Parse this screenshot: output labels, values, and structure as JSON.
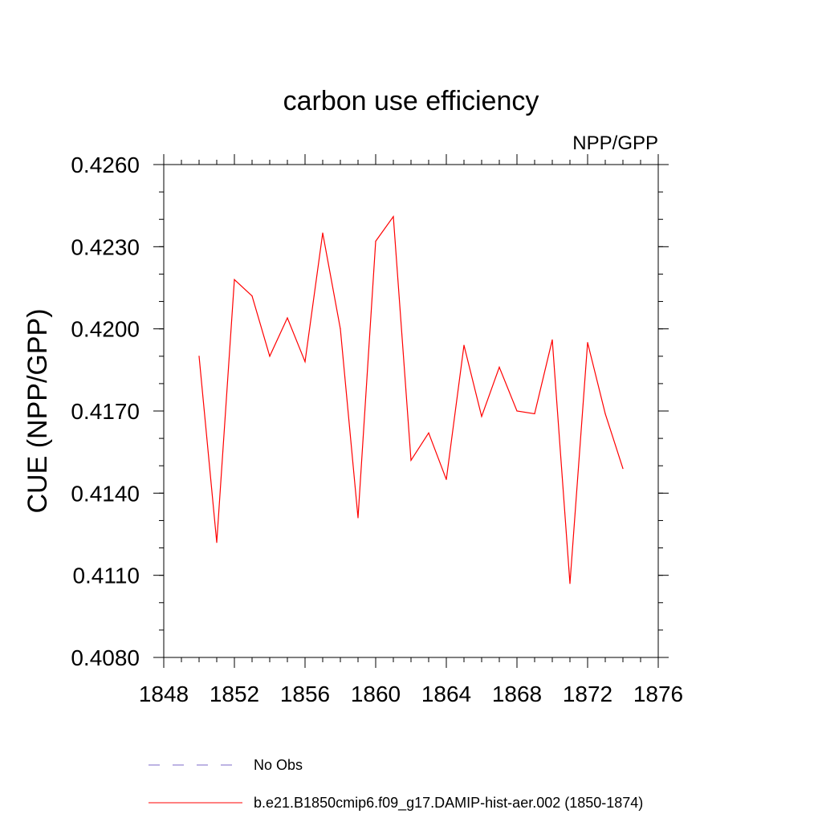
{
  "chart_data": {
    "type": "line",
    "title": "carbon use efficiency",
    "subtitle": "NPP/GPP",
    "xlabel": "",
    "ylabel": "CUE  (NPP/GPP)",
    "xlim": [
      1848,
      1876
    ],
    "ylim": [
      0.408,
      0.426
    ],
    "x_ticks": [
      "1848",
      "1852",
      "1856",
      "1860",
      "1864",
      "1868",
      "1872",
      "1876"
    ],
    "y_ticks": [
      "0.4080",
      "0.4110",
      "0.4140",
      "0.4170",
      "0.4200",
      "0.4230",
      "0.4260"
    ],
    "x_tick_values": [
      1848,
      1852,
      1856,
      1860,
      1864,
      1868,
      1872,
      1876
    ],
    "y_tick_values": [
      0.408,
      0.411,
      0.414,
      0.417,
      0.42,
      0.423,
      0.426
    ],
    "grid": false,
    "legend_position": "bottom",
    "series": [
      {
        "name": "No Obs",
        "color": "#7b68c8",
        "dash": true,
        "x": [],
        "values": []
      },
      {
        "name": "b.e21.B1850cmip6.f09_g17.DAMIP-hist-aer.002 (1850-1874)",
        "color": "#ff0000",
        "dash": false,
        "x": [
          1850,
          1851,
          1852,
          1853,
          1854,
          1855,
          1856,
          1857,
          1858,
          1859,
          1860,
          1861,
          1862,
          1863,
          1864,
          1865,
          1866,
          1867,
          1868,
          1869,
          1870,
          1871,
          1872,
          1873,
          1874
        ],
        "values": [
          0.419,
          0.4122,
          0.4218,
          0.4212,
          0.419,
          0.4204,
          0.4188,
          0.4235,
          0.42,
          0.4131,
          0.4232,
          0.4241,
          0.4152,
          0.4162,
          0.4145,
          0.4194,
          0.4168,
          0.4186,
          0.417,
          0.4169,
          0.4196,
          0.4107,
          0.4195,
          0.4169,
          0.4149
        ]
      }
    ]
  }
}
